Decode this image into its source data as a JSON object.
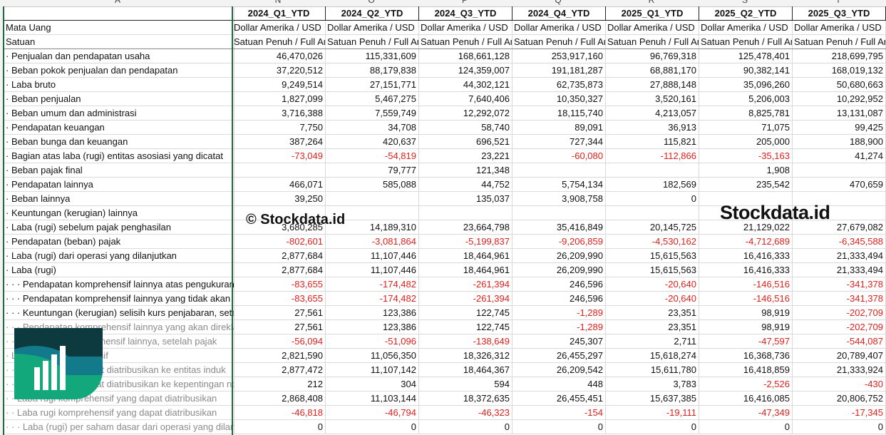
{
  "column_letters": [
    "A",
    "N",
    "O",
    "P",
    "Q",
    "R",
    "S",
    "T"
  ],
  "periods": [
    "2024_Q1_YTD",
    "2024_Q2_YTD",
    "2024_Q3_YTD",
    "2024_Q4_YTD",
    "2025_Q1_YTD",
    "2025_Q2_YTD",
    "2025_Q3_YTD"
  ],
  "meta_rows": [
    {
      "label": "Mata Uang",
      "values": [
        "Dollar Amerika / USD",
        "Dollar Amerika / USD",
        "Dollar Amerika / USD",
        "Dollar Amerika / USD",
        "Dollar Amerika / USD",
        "Dollar Amerika / USD",
        "Dollar Amerika / USD"
      ]
    },
    {
      "label": "Satuan",
      "values": [
        "Satuan Penuh / Full Amount",
        "Satuan Penuh / Full Amount",
        "Satuan Penuh / Full Amount",
        "Satuan Penuh / Full Amount",
        "Satuan Penuh / Full Amount",
        "Satuan Penuh / Full Amount",
        "Satuan Penuh / Full Amount"
      ]
    }
  ],
  "rows": [
    {
      "label": "· Penjualan dan pendapatan usaha",
      "values": [
        "46,470,026",
        "115,331,609",
        "168,661,128",
        "253,917,160",
        "96,769,318",
        "125,478,401",
        "218,699,795"
      ]
    },
    {
      "label": "· Beban pokok penjualan dan pendapatan",
      "values": [
        "37,220,512",
        "88,179,838",
        "124,359,007",
        "191,181,287",
        "68,881,170",
        "90,382,141",
        "168,019,132"
      ]
    },
    {
      "label": "· Laba bruto",
      "values": [
        "9,249,514",
        "27,151,771",
        "44,302,121",
        "62,735,873",
        "27,888,148",
        "35,096,260",
        "50,680,663"
      ]
    },
    {
      "label": "· Beban penjualan",
      "values": [
        "1,827,099",
        "5,467,275",
        "7,640,406",
        "10,350,327",
        "3,520,161",
        "5,206,003",
        "10,292,952"
      ]
    },
    {
      "label": "· Beban umum dan administrasi",
      "values": [
        "3,716,388",
        "7,559,749",
        "12,292,072",
        "18,115,740",
        "4,213,057",
        "8,825,781",
        "13,131,087"
      ]
    },
    {
      "label": "· Pendapatan keuangan",
      "values": [
        "7,750",
        "34,708",
        "58,740",
        "89,091",
        "36,913",
        "71,075",
        "99,425"
      ]
    },
    {
      "label": "· Beban bunga dan keuangan",
      "values": [
        "387,264",
        "420,637",
        "696,521",
        "727,344",
        "115,821",
        "205,000",
        "188,900"
      ]
    },
    {
      "label": "· Bagian atas laba (rugi) entitas asosiasi yang dicatat",
      "values": [
        "-73,049",
        "-54,819",
        "23,221",
        "-60,080",
        "-112,866",
        "-35,163",
        "41,274"
      ]
    },
    {
      "label": "· Beban pajak final",
      "values": [
        "",
        "79,777",
        "121,348",
        "",
        "",
        "1,908",
        ""
      ]
    },
    {
      "label": "· Pendapatan lainnya",
      "values": [
        "466,071",
        "585,088",
        "44,752",
        "5,754,134",
        "182,569",
        "235,542",
        "470,659"
      ]
    },
    {
      "label": "· Beban lainnya",
      "values": [
        "39,250",
        "",
        "135,037",
        "3,908,758",
        "0",
        "",
        ""
      ]
    },
    {
      "label": "· Keuntungan (kerugian) lainnya",
      "values": [
        "",
        "",
        "",
        "",
        "",
        "",
        ""
      ]
    },
    {
      "label": "· Laba (rugi) sebelum pajak penghasilan",
      "values": [
        "3,680,285",
        "14,189,310",
        "23,664,798",
        "35,416,849",
        "20,145,725",
        "21,129,022",
        "27,679,082"
      ]
    },
    {
      "label": "· Pendapatan (beban) pajak",
      "values": [
        "-802,601",
        "-3,081,864",
        "-5,199,837",
        "-9,206,859",
        "-4,530,162",
        "-4,712,689",
        "-6,345,588"
      ]
    },
    {
      "label": "· Laba (rugi) dari operasi yang dilanjutkan",
      "values": [
        "2,877,684",
        "11,107,446",
        "18,464,961",
        "26,209,990",
        "15,615,563",
        "16,416,333",
        "21,333,494"
      ]
    },
    {
      "label": "· Laba (rugi)",
      "values": [
        "2,877,684",
        "11,107,446",
        "18,464,961",
        "26,209,990",
        "15,615,563",
        "16,416,333",
        "21,333,494"
      ]
    },
    {
      "label": "· · · Pendapatan komprehensif lainnya atas pengukuran",
      "values": [
        "-83,655",
        "-174,482",
        "-261,394",
        "246,596",
        "-20,640",
        "-146,516",
        "-341,378"
      ]
    },
    {
      "label": "· · · Pendapatan komprehensif lainnya yang tidak akan",
      "values": [
        "-83,655",
        "-174,482",
        "-261,394",
        "246,596",
        "-20,640",
        "-146,516",
        "-341,378"
      ]
    },
    {
      "label": "· · · Keuntungan (kerugian) selisih kurs penjabaran, setelah pajak",
      "values": [
        "27,561",
        "123,386",
        "122,745",
        "-1,289",
        "23,351",
        "98,919",
        "-202,709"
      ]
    },
    {
      "label": "· · · Pendapatan komprehensif lainnya yang akan direklasifikasi",
      "values": [
        "27,561",
        "123,386",
        "122,745",
        "-1,289",
        "23,351",
        "98,919",
        "-202,709"
      ],
      "faded": true
    },
    {
      "label": "· · Pendapatan komprehensif lainnya, setelah pajak",
      "values": [
        "-56,094",
        "-51,096",
        "-138,649",
        "245,307",
        "2,711",
        "-47,597",
        "-544,087"
      ],
      "faded": true
    },
    {
      "label": "· Laba rugi komprehensif",
      "values": [
        "2,821,590",
        "11,056,350",
        "18,326,312",
        "26,455,297",
        "15,618,274",
        "16,368,736",
        "20,789,407"
      ],
      "faded": true
    },
    {
      "label": "· · Laba rugi yang dapat diatribusikan ke entitas induk",
      "values": [
        "2,877,472",
        "11,107,142",
        "18,464,367",
        "26,209,542",
        "15,611,780",
        "16,418,859",
        "21,333,924"
      ],
      "faded": true
    },
    {
      "label": "· · Laba rugi yang dapat diatribusikan ke kepentingan non-pengendali",
      "values": [
        "212",
        "304",
        "594",
        "448",
        "3,783",
        "-2,526",
        "-430"
      ],
      "faded": true
    },
    {
      "label": "· · Laba rugi komprehensif yang dapat diatribusikan",
      "values": [
        "2,868,408",
        "11,103,144",
        "18,372,635",
        "26,455,451",
        "15,637,385",
        "16,416,085",
        "20,806,752"
      ],
      "faded": true
    },
    {
      "label": "· · Laba rugi komprehensif yang dapat diatribusikan",
      "values": [
        "-46,818",
        "-46,794",
        "-46,323",
        "-154",
        "-19,111",
        "-47,349",
        "-17,345"
      ],
      "faded": true
    },
    {
      "label": "· · · Laba (rugi) per saham dasar dari operasi yang dilanjutkan",
      "values": [
        "0",
        "0",
        "0",
        "0",
        "0",
        "0",
        "0"
      ],
      "faded": true
    }
  ],
  "watermark": {
    "small": "© Stockdata.id",
    "large": "Stockdata.id"
  },
  "colors": {
    "negative": "#e0201c",
    "logo_dark": "#0c3a3f",
    "logo_mid": "#137a8c",
    "logo_green": "#13a77c",
    "selection": "#1e6b41"
  }
}
